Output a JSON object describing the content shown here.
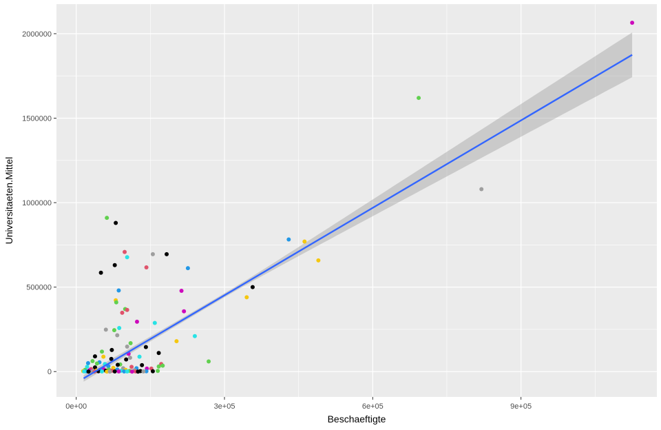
{
  "chart_data": {
    "type": "scatter",
    "xlabel": "Beschaeftigte",
    "ylabel": "Universitaeten.Mittel",
    "xlim": [
      -40000,
      1175000
    ],
    "ylim": [
      -150000,
      2175000
    ],
    "x_ticks": [
      {
        "value": 0,
        "label": "0e+00"
      },
      {
        "value": 300000,
        "label": "3e+05"
      },
      {
        "value": 600000,
        "label": "6e+05"
      },
      {
        "value": 900000,
        "label": "9e+05"
      }
    ],
    "x_minor_ticks": [
      150000,
      450000,
      750000,
      1050000
    ],
    "y_ticks": [
      {
        "value": 0,
        "label": "0"
      },
      {
        "value": 500000,
        "label": "500000"
      },
      {
        "value": 1000000,
        "label": "1000000"
      },
      {
        "value": 1500000,
        "label": "1500000"
      },
      {
        "value": 2000000,
        "label": "2000000"
      }
    ],
    "y_minor_ticks": [
      250000,
      750000,
      1250000,
      1750000
    ],
    "grid": true,
    "background": "#ebebeb",
    "trend_line": {
      "color": "#3366ff",
      "start": [
        15000,
        -40000
      ],
      "end": [
        1125000,
        1875000
      ],
      "ci_lower_end": 1745000,
      "ci_upper_end": 2010000,
      "ci_lower_start": -60000,
      "ci_upper_start": -20000,
      "ci_pinch_x": 300000,
      "ci_pinch_halfwidth": 12000,
      "ci_color": "#999999"
    },
    "points": [
      {
        "x": 1125000,
        "y": 2065000,
        "color": "#cd0bbc"
      },
      {
        "x": 693000,
        "y": 1620000,
        "color": "#61d04f"
      },
      {
        "x": 820000,
        "y": 1080000,
        "color": "#9e9e9e"
      },
      {
        "x": 430000,
        "y": 782000,
        "color": "#2297e6"
      },
      {
        "x": 462000,
        "y": 770000,
        "color": "#f5c710"
      },
      {
        "x": 490000,
        "y": 658000,
        "color": "#f5c710"
      },
      {
        "x": 357000,
        "y": 500000,
        "color": "#000000"
      },
      {
        "x": 345000,
        "y": 440000,
        "color": "#f5c710"
      },
      {
        "x": 62000,
        "y": 910000,
        "color": "#61d04f"
      },
      {
        "x": 80000,
        "y": 880000,
        "color": "#000000"
      },
      {
        "x": 98000,
        "y": 708000,
        "color": "#df536b"
      },
      {
        "x": 155000,
        "y": 695000,
        "color": "#9e9e9e"
      },
      {
        "x": 183000,
        "y": 695000,
        "color": "#000000"
      },
      {
        "x": 103000,
        "y": 677000,
        "color": "#28e2e5"
      },
      {
        "x": 78000,
        "y": 630000,
        "color": "#000000"
      },
      {
        "x": 226000,
        "y": 612000,
        "color": "#2297e6"
      },
      {
        "x": 142000,
        "y": 617000,
        "color": "#df536b"
      },
      {
        "x": 50000,
        "y": 585000,
        "color": "#000000"
      },
      {
        "x": 213000,
        "y": 478000,
        "color": "#cd0bbc"
      },
      {
        "x": 86000,
        "y": 480000,
        "color": "#2297e6"
      },
      {
        "x": 80000,
        "y": 422000,
        "color": "#f5c710"
      },
      {
        "x": 81000,
        "y": 410000,
        "color": "#61d04f"
      },
      {
        "x": 99000,
        "y": 370000,
        "color": "#61d04f"
      },
      {
        "x": 103000,
        "y": 365000,
        "color": "#df536b"
      },
      {
        "x": 93000,
        "y": 348000,
        "color": "#df536b"
      },
      {
        "x": 218000,
        "y": 357000,
        "color": "#cd0bbc"
      },
      {
        "x": 123000,
        "y": 295000,
        "color": "#cd0bbc"
      },
      {
        "x": 159000,
        "y": 288000,
        "color": "#28e2e5"
      },
      {
        "x": 87000,
        "y": 258000,
        "color": "#28e2e5"
      },
      {
        "x": 60000,
        "y": 248000,
        "color": "#9e9e9e"
      },
      {
        "x": 77000,
        "y": 245000,
        "color": "#61d04f"
      },
      {
        "x": 83000,
        "y": 215000,
        "color": "#9e9e9e"
      },
      {
        "x": 240000,
        "y": 210000,
        "color": "#28e2e5"
      },
      {
        "x": 203000,
        "y": 180000,
        "color": "#f5c710"
      },
      {
        "x": 110000,
        "y": 168000,
        "color": "#61d04f"
      },
      {
        "x": 103000,
        "y": 148000,
        "color": "#9e9e9e"
      },
      {
        "x": 141000,
        "y": 145000,
        "color": "#000000"
      },
      {
        "x": 72000,
        "y": 128000,
        "color": "#000000"
      },
      {
        "x": 52000,
        "y": 118000,
        "color": "#61d04f"
      },
      {
        "x": 167000,
        "y": 110000,
        "color": "#000000"
      },
      {
        "x": 106000,
        "y": 105000,
        "color": "#cd0bbc"
      },
      {
        "x": 38000,
        "y": 90000,
        "color": "#000000"
      },
      {
        "x": 55000,
        "y": 88000,
        "color": "#f5c710"
      },
      {
        "x": 128000,
        "y": 88000,
        "color": "#28e2e5"
      },
      {
        "x": 109000,
        "y": 82000,
        "color": "#9e9e9e"
      },
      {
        "x": 71000,
        "y": 75000,
        "color": "#000000"
      },
      {
        "x": 101000,
        "y": 72000,
        "color": "#000000"
      },
      {
        "x": 268000,
        "y": 60000,
        "color": "#61d04f"
      },
      {
        "x": 33000,
        "y": 62000,
        "color": "#61d04f"
      },
      {
        "x": 47000,
        "y": 55000,
        "color": "#2297e6"
      },
      {
        "x": 24000,
        "y": 50000,
        "color": "#2297e6"
      },
      {
        "x": 42000,
        "y": 48000,
        "color": "#61d04f"
      },
      {
        "x": 58000,
        "y": 45000,
        "color": "#28e2e5"
      },
      {
        "x": 89000,
        "y": 42000,
        "color": "#61d04f"
      },
      {
        "x": 84000,
        "y": 40000,
        "color": "#000000"
      },
      {
        "x": 172000,
        "y": 45000,
        "color": "#df536b"
      },
      {
        "x": 133000,
        "y": 38000,
        "color": "#000000"
      },
      {
        "x": 175000,
        "y": 35000,
        "color": "#61d04f"
      },
      {
        "x": 167000,
        "y": 30000,
        "color": "#61d04f"
      },
      {
        "x": 65000,
        "y": 32000,
        "color": "#2297e6"
      },
      {
        "x": 112000,
        "y": 28000,
        "color": "#df536b"
      },
      {
        "x": 22000,
        "y": 28000,
        "color": "#28e2e5"
      },
      {
        "x": 38000,
        "y": 25000,
        "color": "#000000"
      },
      {
        "x": 75000,
        "y": 22000,
        "color": "#f5c710"
      },
      {
        "x": 95000,
        "y": 20000,
        "color": "#9e9e9e"
      },
      {
        "x": 122000,
        "y": 20000,
        "color": "#2297e6"
      },
      {
        "x": 143000,
        "y": 18000,
        "color": "#cd0bbc"
      },
      {
        "x": 152000,
        "y": 18000,
        "color": "#df536b"
      },
      {
        "x": 30000,
        "y": 15000,
        "color": "#df536b"
      },
      {
        "x": 55000,
        "y": 15000,
        "color": "#cd0bbc"
      },
      {
        "x": 66000,
        "y": 12000,
        "color": "#61d04f"
      },
      {
        "x": 83000,
        "y": 12000,
        "color": "#2297e6"
      },
      {
        "x": 18000,
        "y": 10000,
        "color": "#61d04f"
      },
      {
        "x": 48000,
        "y": 10000,
        "color": "#2297e6"
      },
      {
        "x": 100000,
        "y": 10000,
        "color": "#f5c710"
      },
      {
        "x": 118000,
        "y": 8000,
        "color": "#9e9e9e"
      },
      {
        "x": 27000,
        "y": 8000,
        "color": "#cd0bbc"
      },
      {
        "x": 41000,
        "y": 6000,
        "color": "#f5c710"
      },
      {
        "x": 60000,
        "y": 5000,
        "color": "#000000"
      },
      {
        "x": 72000,
        "y": 5000,
        "color": "#df536b"
      },
      {
        "x": 90000,
        "y": 4000,
        "color": "#28e2e5"
      },
      {
        "x": 108000,
        "y": 4000,
        "color": "#61d04f"
      },
      {
        "x": 165000,
        "y": 4000,
        "color": "#61d04f"
      },
      {
        "x": 130000,
        "y": 3000,
        "color": "#000000"
      },
      {
        "x": 142000,
        "y": 2000,
        "color": "#2297e6"
      },
      {
        "x": 155000,
        "y": 2000,
        "color": "#000000"
      },
      {
        "x": 14000,
        "y": 3000,
        "color": "#f5c710"
      },
      {
        "x": 20000,
        "y": 2000,
        "color": "#2297e6"
      },
      {
        "x": 33000,
        "y": 2000,
        "color": "#9e9e9e"
      },
      {
        "x": 45000,
        "y": 2000,
        "color": "#000000"
      },
      {
        "x": 52000,
        "y": 1000,
        "color": "#28e2e5"
      },
      {
        "x": 78000,
        "y": 1000,
        "color": "#000000"
      },
      {
        "x": 86000,
        "y": 1000,
        "color": "#cd0bbc"
      },
      {
        "x": 97000,
        "y": 1000,
        "color": "#2297e6"
      },
      {
        "x": 103000,
        "y": 1000,
        "color": "#28e2e5"
      },
      {
        "x": 120000,
        "y": 1000,
        "color": "#df536b"
      },
      {
        "x": 136000,
        "y": 1000,
        "color": "#9e9e9e"
      },
      {
        "x": 16000,
        "y": 1000,
        "color": "#28e2e5"
      },
      {
        "x": 25000,
        "y": 0,
        "color": "#000000"
      },
      {
        "x": 37000,
        "y": 0,
        "color": "#df536b"
      },
      {
        "x": 62000,
        "y": 0,
        "color": "#f5c710"
      },
      {
        "x": 68000,
        "y": 0,
        "color": "#9e9e9e"
      },
      {
        "x": 113000,
        "y": 0,
        "color": "#cd0bbc"
      },
      {
        "x": 125000,
        "y": 0,
        "color": "#000000"
      }
    ]
  }
}
